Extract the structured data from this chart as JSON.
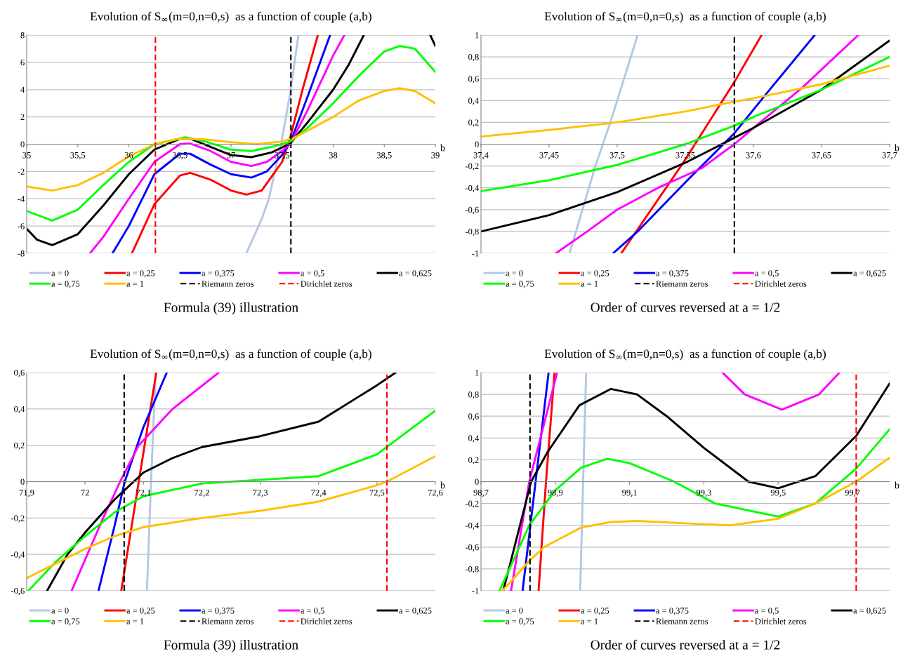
{
  "chart_data": [
    {
      "type": "line",
      "title": "Evolution of S$_{∞}$(m=0,n=0,s)  as a function of couple (a,b)",
      "xlabel": "b",
      "annotations": [
        "Formula (39) illustration"
      ],
      "grid": "y",
      "legend": "bottom",
      "xlim": [
        35,
        39
      ],
      "ylim": [
        -8,
        8
      ],
      "xticks": [
        35,
        {
          "value": 35.5,
          "label": "35,5"
        },
        36,
        {
          "value": 36.5,
          "label": "36,5"
        },
        37,
        {
          "value": 37.5,
          "label": "37,5"
        },
        38,
        {
          "value": 38.5,
          "label": "38,5"
        },
        39
      ],
      "yticks": [
        -8,
        -6,
        -4,
        -2,
        0,
        2,
        4,
        6,
        8
      ],
      "series": [
        {
          "name": "a = 0",
          "color": "#b4c7e7",
          "x": [
            37.15,
            37.3,
            37.37,
            37.49,
            37.58,
            37.66
          ],
          "values": [
            -8,
            -5.5,
            -4,
            0,
            3.8,
            8
          ]
        },
        {
          "name": "a = 0,25",
          "color": "#ff0000",
          "x": [
            36.03,
            36.25,
            36.5,
            36.6,
            36.8,
            37.0,
            37.15,
            37.3,
            37.5,
            37.58,
            37.7,
            37.85
          ],
          "values": [
            -8,
            -4.4,
            -2.3,
            -2.1,
            -2.6,
            -3.4,
            -3.7,
            -3.4,
            -1.3,
            0.5,
            4,
            8
          ]
        },
        {
          "name": "a = 0,375",
          "color": "#0000ff",
          "x": [
            35.84,
            36.0,
            36.25,
            36.5,
            36.6,
            36.8,
            37.0,
            37.2,
            37.35,
            37.5,
            37.58,
            37.75,
            37.97
          ],
          "values": [
            -8,
            -6,
            -2.2,
            -0.7,
            -0.7,
            -1.5,
            -2.2,
            -2.45,
            -2,
            -0.8,
            0.1,
            3.5,
            8
          ]
        },
        {
          "name": "a = 0,5",
          "color": "#ff00ff",
          "x": [
            35.62,
            35.75,
            36.0,
            36.25,
            36.5,
            36.6,
            36.8,
            37.0,
            37.2,
            37.35,
            37.5,
            37.58,
            37.75,
            38.0,
            38.11
          ],
          "values": [
            -8,
            -6.8,
            -4,
            -1.3,
            0,
            0.05,
            -0.5,
            -1.3,
            -1.6,
            -1.3,
            -0.5,
            0,
            2.5,
            6.5,
            8
          ]
        },
        {
          "name": "a = 0,625",
          "color": "#000000",
          "x": [
            35.0,
            35.1,
            35.25,
            35.5,
            35.75,
            36.0,
            36.25,
            36.5,
            36.6,
            36.8,
            37.0,
            37.2,
            37.4,
            37.58,
            37.75,
            38.0,
            38.15,
            38.3,
            38.6,
            38.95,
            39.0
          ],
          "values": [
            -6.2,
            -7,
            -7.4,
            -6.6,
            -4.5,
            -2.2,
            -0.4,
            0.4,
            0.4,
            -0.2,
            -0.8,
            -0.95,
            -0.6,
            0.05,
            1.6,
            4,
            5.8,
            8,
            null,
            8,
            7.2
          ]
        },
        {
          "name": "a = 0,75",
          "color": "#00ff00",
          "x": [
            35.0,
            35.25,
            35.5,
            35.75,
            36.0,
            36.25,
            36.55,
            36.75,
            37.0,
            37.2,
            37.4,
            37.58,
            37.75,
            38.0,
            38.25,
            38.5,
            38.65,
            38.8,
            39.0
          ],
          "values": [
            -4.9,
            -5.6,
            -4.8,
            -3,
            -1.3,
            0,
            0.5,
            0.2,
            -0.4,
            -0.5,
            -0.2,
            0.17,
            1.2,
            3,
            5,
            6.8,
            7.2,
            7,
            5.3
          ]
        },
        {
          "name": "a = 1",
          "color": "#ffc000",
          "x": [
            35.0,
            35.25,
            35.5,
            35.75,
            36.0,
            36.25,
            36.5,
            36.75,
            37.0,
            37.25,
            37.5,
            37.6,
            38.0,
            38.25,
            38.5,
            38.65,
            38.8,
            39.0
          ],
          "values": [
            -3.1,
            -3.4,
            -3,
            -2.1,
            -0.9,
            0,
            0.4,
            0.35,
            0.15,
            0,
            0.2,
            0.4,
            2,
            3.2,
            3.9,
            4.1,
            3.9,
            3
          ]
        }
      ],
      "ref_lines": [
        {
          "axis": "x",
          "value": 37.586,
          "label": "Riemann zeros",
          "color": "#000000",
          "line_style": "dashed"
        },
        {
          "axis": "x",
          "value": 36.26,
          "label": "Dirichlet zeros",
          "color": "#ff0000",
          "line_style": "dashed"
        }
      ]
    },
    {
      "type": "line",
      "title": "Evolution of S$_{∞}$(m=0,n=0,s)  as a function of couple (a,b)",
      "xlabel": "b",
      "annotations": [
        "Order of curves reversed at a = 1/2"
      ],
      "grid": "y",
      "legend": "bottom",
      "xlim": [
        37.4,
        37.7
      ],
      "ylim": [
        -1,
        1
      ],
      "xticks": [
        {
          "value": 37.4,
          "label": "37,4"
        },
        {
          "value": 37.45,
          "label": "37,45"
        },
        {
          "value": 37.5,
          "label": "37,5"
        },
        {
          "value": 37.55,
          "label": "37,55"
        },
        {
          "value": 37.6,
          "label": "37,6"
        },
        {
          "value": 37.65,
          "label": "37,65"
        },
        {
          "value": 37.7,
          "label": "37,7"
        }
      ],
      "yticks": [
        -1,
        {
          "value": -0.8,
          "label": "-0,8"
        },
        {
          "value": -0.6,
          "label": "-0,6"
        },
        {
          "value": -0.4,
          "label": "-0,4"
        },
        {
          "value": -0.2,
          "label": "-0,2"
        },
        0,
        {
          "value": 0.2,
          "label": "0,2"
        },
        {
          "value": 0.4,
          "label": "0,4"
        },
        {
          "value": 0.6,
          "label": "0,6"
        },
        {
          "value": 0.8,
          "label": "0,8"
        },
        1
      ],
      "series": [
        {
          "name": "a = 0",
          "color": "#b4c7e7",
          "x": [
            37.465,
            37.484,
            37.495,
            37.515
          ],
          "values": [
            -1,
            -0.2,
            0.2,
            1
          ]
        },
        {
          "name": "a = 0,25",
          "color": "#ff0000",
          "x": [
            37.503,
            37.549,
            37.586,
            37.606
          ],
          "values": [
            -1,
            -0.16,
            0.57,
            1
          ]
        },
        {
          "name": "a = 0,375",
          "color": "#0000ff",
          "x": [
            37.497,
            37.515,
            37.55,
            37.586,
            37.608,
            37.645
          ],
          "values": [
            -1,
            -0.8,
            -0.35,
            0.1,
            0.44,
            1
          ]
        },
        {
          "name": "a = 0,5",
          "color": "#ff00ff",
          "x": [
            37.455,
            37.478,
            37.5,
            37.53,
            37.562,
            37.586,
            37.605,
            37.636,
            37.677
          ],
          "values": [
            -1,
            -0.8,
            -0.6,
            -0.4,
            -0.22,
            0,
            0.2,
            0.52,
            1
          ]
        },
        {
          "name": "a = 0,625",
          "color": "#000000",
          "x": [
            37.4,
            37.45,
            37.5,
            37.55,
            37.58,
            37.6,
            37.65,
            37.7
          ],
          "values": [
            -0.8,
            -0.65,
            -0.44,
            -0.17,
            0.02,
            0.15,
            0.5,
            0.95
          ]
        },
        {
          "name": "a = 0,75",
          "color": "#00ff00",
          "x": [
            37.4,
            37.45,
            37.5,
            37.55,
            37.586,
            37.6,
            37.65,
            37.7
          ],
          "values": [
            -0.43,
            -0.33,
            -0.19,
            0,
            0.17,
            0.25,
            0.5,
            0.8
          ]
        },
        {
          "name": "a = 1",
          "color": "#ffc000",
          "x": [
            37.4,
            37.45,
            37.5,
            37.55,
            37.586,
            37.6,
            37.65,
            37.7
          ],
          "values": [
            0.07,
            0.13,
            0.2,
            0.3,
            0.39,
            0.42,
            0.55,
            0.72
          ]
        }
      ],
      "ref_lines": [
        {
          "axis": "x",
          "value": 37.586,
          "label": "Riemann zeros",
          "color": "#000000",
          "line_style": "dashed"
        },
        {
          "axis": "x",
          "value": null,
          "label": "Dirichlet zeros",
          "color": "#ff0000",
          "line_style": "dashed"
        }
      ]
    },
    {
      "type": "line",
      "title": "Evolution of S$_{∞}$(m=0,n=0,s)  as a function of couple (a,b)",
      "xlabel": "b",
      "annotations": [
        "Formula (39) illustration"
      ],
      "grid": "y",
      "legend": "bottom",
      "xlim": [
        71.9,
        72.6
      ],
      "ylim": [
        -0.6,
        0.6
      ],
      "xticks": [
        {
          "value": 71.9,
          "label": "71,9"
        },
        72,
        {
          "value": 72.1,
          "label": "72,1"
        },
        {
          "value": 72.2,
          "label": "72,2"
        },
        {
          "value": 72.3,
          "label": "72,3"
        },
        {
          "value": 72.4,
          "label": "72,4"
        },
        {
          "value": 72.5,
          "label": "72,5"
        },
        {
          "value": 72.6,
          "label": "72,6"
        }
      ],
      "yticks": [
        {
          "value": -0.6,
          "label": "-0,6"
        },
        {
          "value": -0.4,
          "label": "-0,4"
        },
        {
          "value": -0.2,
          "label": "-0,2"
        },
        0,
        {
          "value": 0.2,
          "label": "0,2"
        },
        {
          "value": 0.4,
          "label": "0,4"
        },
        {
          "value": 0.6,
          "label": "0,6"
        }
      ],
      "series": [
        {
          "name": "a = 0",
          "color": "#b4c7e7",
          "x": [
            72.106,
            72.113,
            72.121
          ],
          "values": [
            -0.6,
            0,
            0.6
          ]
        },
        {
          "name": "a = 0,25",
          "color": "#ff0000",
          "x": [
            72.062,
            72.092,
            72.122
          ],
          "values": [
            -0.6,
            0,
            0.6
          ]
        },
        {
          "name": "a = 0,375",
          "color": "#0000ff",
          "x": [
            72.023,
            72.05,
            72.068,
            72.1,
            72.14
          ],
          "values": [
            -0.6,
            -0.25,
            0,
            0.3,
            0.6
          ]
        },
        {
          "name": "a = 0,5",
          "color": "#ff00ff",
          "x": [
            71.977,
            72.031,
            72.06,
            72.092,
            72.15,
            72.229
          ],
          "values": [
            -0.6,
            -0.2,
            0,
            0.2,
            0.4,
            0.6
          ]
        },
        {
          "name": "a = 0,625",
          "color": "#000000",
          "x": [
            71.935,
            71.97,
            72.0,
            72.05,
            72.1,
            72.15,
            72.2,
            72.3,
            72.4,
            72.5,
            72.532
          ],
          "values": [
            -0.6,
            -0.4,
            -0.28,
            -0.1,
            0.05,
            0.13,
            0.19,
            0.25,
            0.33,
            0.53,
            0.6
          ]
        },
        {
          "name": "a = 0,75",
          "color": "#00ff00",
          "x": [
            71.903,
            71.95,
            72.0,
            72.05,
            72.1,
            72.2,
            72.3,
            72.4,
            72.5,
            72.6
          ],
          "values": [
            -0.6,
            -0.44,
            -0.3,
            -0.17,
            -0.08,
            -0.01,
            0.01,
            0.03,
            0.15,
            0.39
          ]
        },
        {
          "name": "a = 1",
          "color": "#ffc000",
          "x": [
            71.9,
            71.95,
            72.0,
            72.05,
            72.1,
            72.2,
            72.3,
            72.4,
            72.5,
            72.517,
            72.6
          ],
          "values": [
            -0.53,
            -0.45,
            -0.37,
            -0.3,
            -0.25,
            -0.2,
            -0.16,
            -0.11,
            -0.02,
            0,
            0.14
          ]
        }
      ],
      "ref_lines": [
        {
          "axis": "x",
          "value": 72.067,
          "label": "Riemann zeros",
          "color": "#000000",
          "line_style": "dashed"
        },
        {
          "axis": "x",
          "value": 72.517,
          "label": "Dirichlet zeros",
          "color": "#ff0000",
          "line_style": "dashed"
        }
      ]
    },
    {
      "type": "line",
      "title": "Evolution of S$_{∞}$(m=0,n=0,s)  as a function of couple (a,b)",
      "xlabel": "b",
      "annotations": [
        "Order of curves reversed at a = 1/2"
      ],
      "grid": "y",
      "legend": "bottom",
      "xlim": [
        98.7,
        99.8
      ],
      "ylim": [
        -1,
        1
      ],
      "xticks": [
        {
          "value": 98.7,
          "label": "98,7"
        },
        {
          "value": 98.9,
          "label": "98,9"
        },
        {
          "value": 99.1,
          "label": "99,1"
        },
        {
          "value": 99.3,
          "label": "99,3"
        },
        {
          "value": 99.5,
          "label": "99,5"
        },
        {
          "value": 99.7,
          "label": "99,7"
        }
      ],
      "yticks": [
        -1,
        {
          "value": -0.8,
          "label": "-0,8"
        },
        {
          "value": -0.6,
          "label": "-0,6"
        },
        {
          "value": -0.4,
          "label": "-0,4"
        },
        {
          "value": -0.2,
          "label": "-0,2"
        },
        0,
        {
          "value": 0.2,
          "label": "0,2"
        },
        {
          "value": 0.4,
          "label": "0,4"
        },
        {
          "value": 0.6,
          "label": "0,6"
        },
        {
          "value": 0.8,
          "label": "0,8"
        },
        1
      ],
      "series": [
        {
          "name": "a = 0",
          "color": "#b4c7e7",
          "x": [
            98.967,
            98.983
          ],
          "values": [
            -1,
            1
          ]
        },
        {
          "name": "a = 0,25",
          "color": "#ff0000",
          "x": [
            98.855,
            98.875,
            98.898
          ],
          "values": [
            -1,
            0,
            1
          ]
        },
        {
          "name": "a = 0,375",
          "color": "#0000ff",
          "x": [
            98.812,
            98.882
          ],
          "values": [
            -1,
            1
          ]
        },
        {
          "name": "a = 0,5",
          "color": "#ff00ff",
          "x": [
            98.781,
            98.83,
            98.905,
            99.1,
            99.35,
            99.41,
            99.51,
            99.61,
            99.665
          ],
          "values": [
            -1,
            0,
            1,
            null,
            1,
            0.8,
            0.66,
            0.8,
            1
          ]
        },
        {
          "name": "a = 0,625",
          "color": "#000000",
          "x": [
            98.76,
            98.835,
            98.879,
            98.965,
            99.05,
            99.12,
            99.2,
            99.3,
            99.42,
            99.5,
            99.6,
            99.71,
            99.8
          ],
          "values": [
            -1,
            0,
            0.27,
            0.7,
            0.85,
            0.8,
            0.6,
            0.31,
            0,
            -0.06,
            0.05,
            0.42,
            0.9
          ]
        },
        {
          "name": "a = 0,75",
          "color": "#00ff00",
          "x": [
            98.75,
            98.83,
            98.9,
            98.97,
            99.04,
            99.1,
            99.22,
            99.33,
            99.5,
            99.6,
            99.71,
            99.8
          ],
          "values": [
            -1,
            -0.4,
            -0.08,
            0.13,
            0.21,
            0.17,
            0,
            -0.2,
            -0.32,
            -0.2,
            0.12,
            0.48
          ]
        },
        {
          "name": "a = 1",
          "color": "#ffc000",
          "x": [
            98.758,
            98.832,
            98.87,
            98.97,
            99.05,
            99.12,
            99.3,
            99.37,
            99.5,
            99.6,
            99.71,
            99.8
          ],
          "values": [
            -1,
            -0.72,
            -0.6,
            -0.42,
            -0.37,
            -0.36,
            -0.39,
            -0.4,
            -0.34,
            -0.2,
            0,
            0.22
          ]
        }
      ],
      "ref_lines": [
        {
          "axis": "x",
          "value": 98.832,
          "label": "Riemann zeros",
          "color": "#000000",
          "line_style": "dashed"
        },
        {
          "axis": "x",
          "value": 99.71,
          "label": "Dirichlet zeros",
          "color": "#ff0000",
          "line_style": "dashed"
        }
      ]
    }
  ]
}
